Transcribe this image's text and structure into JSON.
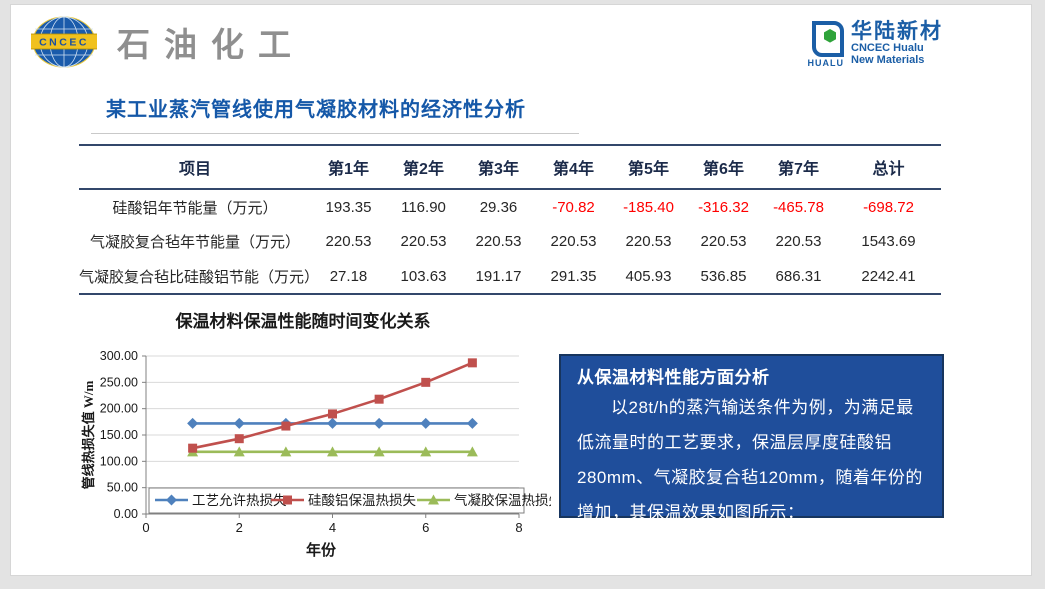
{
  "header": {
    "left_logo": {
      "badge_text": "CNCEC",
      "brand_text": "石油化工"
    },
    "right_logo": {
      "icon_text": "HUALU",
      "cn_name": "华陆新材",
      "en_line1": "CNCEC Hualu",
      "en_line2": "New Materials"
    }
  },
  "title": "某工业蒸汽管线使用气凝胶材料的经济性分析",
  "table": {
    "headers": [
      "项目",
      "第1年",
      "第2年",
      "第3年",
      "第4年",
      "第5年",
      "第6年",
      "第7年",
      "总计"
    ],
    "rows": [
      {
        "label": "硅酸铝年节能量（万元）",
        "values": [
          "193.35",
          "116.90",
          "29.36",
          "-70.82",
          "-185.40",
          "-316.32",
          "-465.78",
          "-698.72"
        ]
      },
      {
        "label": "气凝胶复合毡年节能量（万元）",
        "values": [
          "220.53",
          "220.53",
          "220.53",
          "220.53",
          "220.53",
          "220.53",
          "220.53",
          "1543.69"
        ]
      },
      {
        "label": "气凝胶复合毡比硅酸铝节能（万元）",
        "values": [
          "27.18",
          "103.63",
          "191.17",
          "291.35",
          "405.93",
          "536.85",
          "686.31",
          "2242.41"
        ]
      }
    ],
    "negative_color": "#ff0000"
  },
  "chart_data": {
    "type": "line",
    "title": "保温材料保温性能随时间变化关系",
    "xlabel": "年份",
    "ylabel": "管线热损失值 W/m",
    "xlim": [
      0,
      8
    ],
    "ylim": [
      0,
      300
    ],
    "xticks": [
      0,
      2,
      4,
      6,
      8
    ],
    "ytick_step": 50,
    "grid": true,
    "legend_position": "bottom-inside",
    "x": [
      1,
      2,
      3,
      4,
      5,
      6,
      7
    ],
    "series": [
      {
        "name": "工艺允许热损失",
        "color": "#4f81bd",
        "marker": "diamond",
        "values": [
          172,
          172,
          172,
          172,
          172,
          172,
          172
        ]
      },
      {
        "name": "硅酸铝保温热损失",
        "color": "#c0504d",
        "marker": "square",
        "values": [
          125,
          143,
          167,
          190,
          218,
          250,
          287
        ]
      },
      {
        "name": "气凝胶保温热损失",
        "color": "#9bbb59",
        "marker": "triangle",
        "values": [
          118,
          118,
          118,
          118,
          118,
          118,
          118
        ]
      }
    ],
    "axis_color": "#808080",
    "grid_color": "#d9d9d9"
  },
  "infobox": {
    "title": "从保温材料性能方面分析",
    "body": "以28t/h的蒸汽输送条件为例，为满足最低流量时的工艺要求，保温层厚度硅酸铝280mm、气凝胶复合毡120mm，随着年份的增加，其保温效果如图所示：",
    "bg": "#1f4e9b",
    "border": "#17355e"
  }
}
